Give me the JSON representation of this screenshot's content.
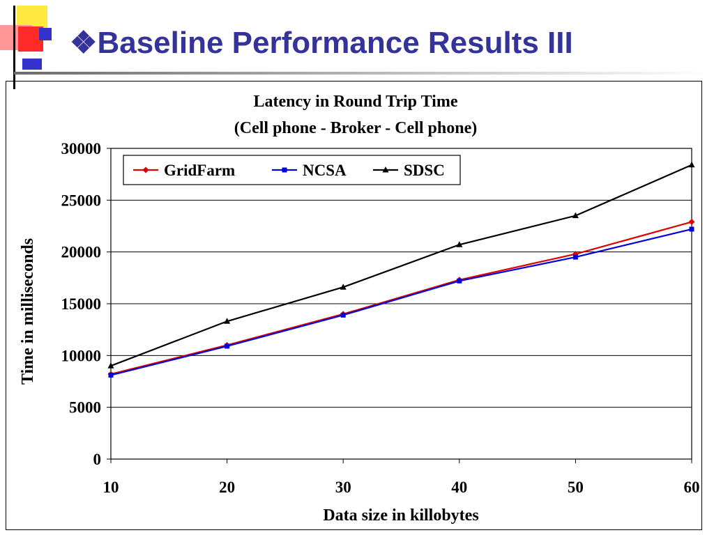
{
  "slide": {
    "bullet": "❖",
    "title": "Baseline Performance Results III",
    "title_color": "#333399",
    "logo_colors": {
      "yellow": "#FFE840",
      "red": "#FF2A2A",
      "pink": "#FF9999",
      "blue": "#3333CC"
    }
  },
  "chart_data": {
    "type": "line",
    "title": "Latency in Round Trip Time",
    "subtitle": "(Cell phone - Broker - Cell phone)",
    "xlabel": "Data size in killobytes",
    "ylabel": "Time in milliseconds",
    "x": [
      10,
      20,
      30,
      40,
      50,
      60
    ],
    "xlim": [
      10,
      60
    ],
    "ylim": [
      0,
      30000
    ],
    "yticks": [
      0,
      5000,
      10000,
      15000,
      20000,
      25000,
      30000
    ],
    "grid": "horizontal",
    "legend_position": "top-left",
    "series": [
      {
        "name": "GridFarm",
        "color": "#DD0000",
        "marker": "diamond",
        "values": [
          8200,
          11000,
          14000,
          17300,
          19800,
          22900
        ]
      },
      {
        "name": "NCSA",
        "color": "#0000DD",
        "marker": "square",
        "values": [
          8100,
          10900,
          13900,
          17200,
          19500,
          22200
        ]
      },
      {
        "name": "SDSC",
        "color": "#000000",
        "marker": "triangle",
        "values": [
          9000,
          13300,
          16600,
          20700,
          23500,
          28400
        ]
      }
    ]
  }
}
